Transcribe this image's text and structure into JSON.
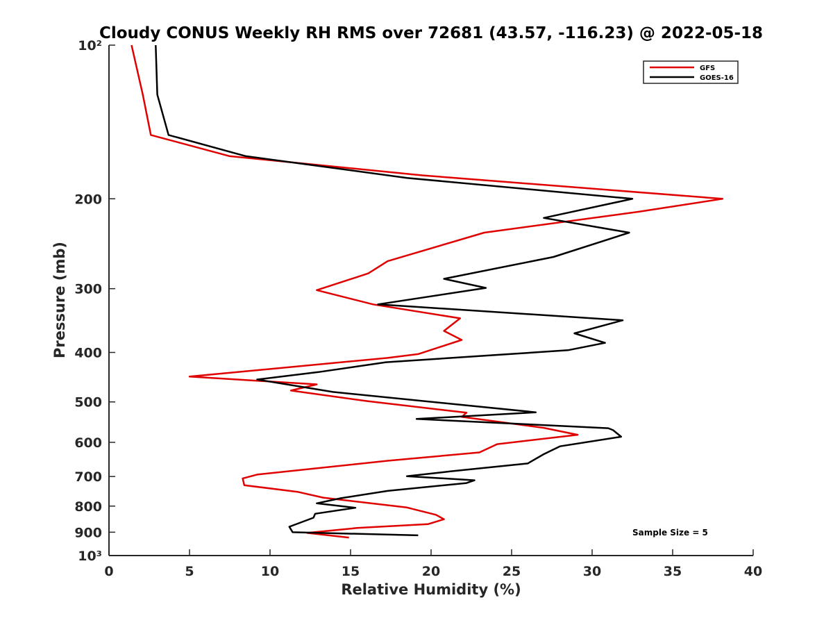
{
  "chart_data": {
    "type": "line",
    "title": "Cloudy CONUS Weekly RH RMS over 72681 (43.57, -116.23) @ 2022-05-18",
    "xlabel": "Relative Humidity (%)",
    "ylabel": "Pressure (mb)",
    "xlim": [
      0,
      40
    ],
    "ylim": [
      100,
      1000
    ],
    "y_scale": "log",
    "y_reversed": true,
    "x_ticks": [
      0,
      5,
      10,
      15,
      20,
      25,
      30,
      35,
      40
    ],
    "x_tick_labels": [
      "0",
      "5",
      "10",
      "15",
      "20",
      "25",
      "30",
      "35",
      "40"
    ],
    "y_ticks": [
      100,
      200,
      300,
      400,
      500,
      600,
      700,
      800,
      900,
      1000
    ],
    "y_tick_labels": [
      "10²",
      "200",
      "300",
      "400",
      "500",
      "600",
      "700",
      "800",
      "900",
      "10³"
    ],
    "grid": false,
    "legend_position": "top-right",
    "annotation": "Sample Size = 5",
    "series": [
      {
        "name": "GFS",
        "color": "#e00000",
        "points": [
          [
            1.4,
            100
          ],
          [
            2.1,
            125
          ],
          [
            2.6,
            150
          ],
          [
            7.5,
            165
          ],
          [
            19.5,
            180
          ],
          [
            38.1,
            200
          ],
          [
            32.9,
            212
          ],
          [
            23.3,
            233
          ],
          [
            17.3,
            265
          ],
          [
            16.1,
            280
          ],
          [
            12.9,
            302
          ],
          [
            16.4,
            322
          ],
          [
            21.8,
            343
          ],
          [
            20.8,
            363
          ],
          [
            21.9,
            378
          ],
          [
            19.2,
            403
          ],
          [
            17.3,
            410
          ],
          [
            5.0,
            446
          ],
          [
            12.9,
            462
          ],
          [
            11.3,
            475
          ],
          [
            16.0,
            498
          ],
          [
            22.2,
            525
          ],
          [
            21.9,
            535
          ],
          [
            27.0,
            562
          ],
          [
            29.1,
            580
          ],
          [
            24.1,
            605
          ],
          [
            23.0,
            628
          ],
          [
            17.3,
            652
          ],
          [
            9.2,
            694
          ],
          [
            8.3,
            706
          ],
          [
            8.4,
            728
          ],
          [
            11.7,
            750
          ],
          [
            13.3,
            770
          ],
          [
            18.5,
            805
          ],
          [
            20.3,
            832
          ],
          [
            20.8,
            849
          ],
          [
            19.8,
            868
          ],
          [
            15.4,
            883
          ],
          [
            12.3,
            903
          ],
          [
            14.9,
            922
          ]
        ]
      },
      {
        "name": "GOES-16",
        "color": "#000000",
        "points": [
          [
            2.9,
            100
          ],
          [
            3.0,
            125
          ],
          [
            3.7,
            150
          ],
          [
            8.5,
            165
          ],
          [
            18.5,
            182
          ],
          [
            32.5,
            200
          ],
          [
            27.0,
            218
          ],
          [
            32.3,
            233
          ],
          [
            27.6,
            260
          ],
          [
            20.8,
            287
          ],
          [
            23.4,
            299
          ],
          [
            16.7,
            322
          ],
          [
            31.9,
            346
          ],
          [
            28.9,
            367
          ],
          [
            30.8,
            383
          ],
          [
            28.5,
            396
          ],
          [
            17.2,
            418
          ],
          [
            13.0,
            437
          ],
          [
            9.2,
            452
          ],
          [
            13.9,
            478
          ],
          [
            26.5,
            524
          ],
          [
            19.1,
            540
          ],
          [
            31.0,
            563
          ],
          [
            31.3,
            568
          ],
          [
            31.8,
            585
          ],
          [
            28.0,
            611
          ],
          [
            27.0,
            633
          ],
          [
            26.0,
            660
          ],
          [
            21.2,
            684
          ],
          [
            18.5,
            699
          ],
          [
            22.7,
            712
          ],
          [
            22.2,
            721
          ],
          [
            17.3,
            747
          ],
          [
            14.4,
            772
          ],
          [
            12.9,
            790
          ],
          [
            15.3,
            806
          ],
          [
            12.8,
            828
          ],
          [
            12.7,
            843
          ],
          [
            11.2,
            878
          ],
          [
            11.4,
            900
          ],
          [
            19.2,
            913
          ]
        ]
      }
    ]
  }
}
